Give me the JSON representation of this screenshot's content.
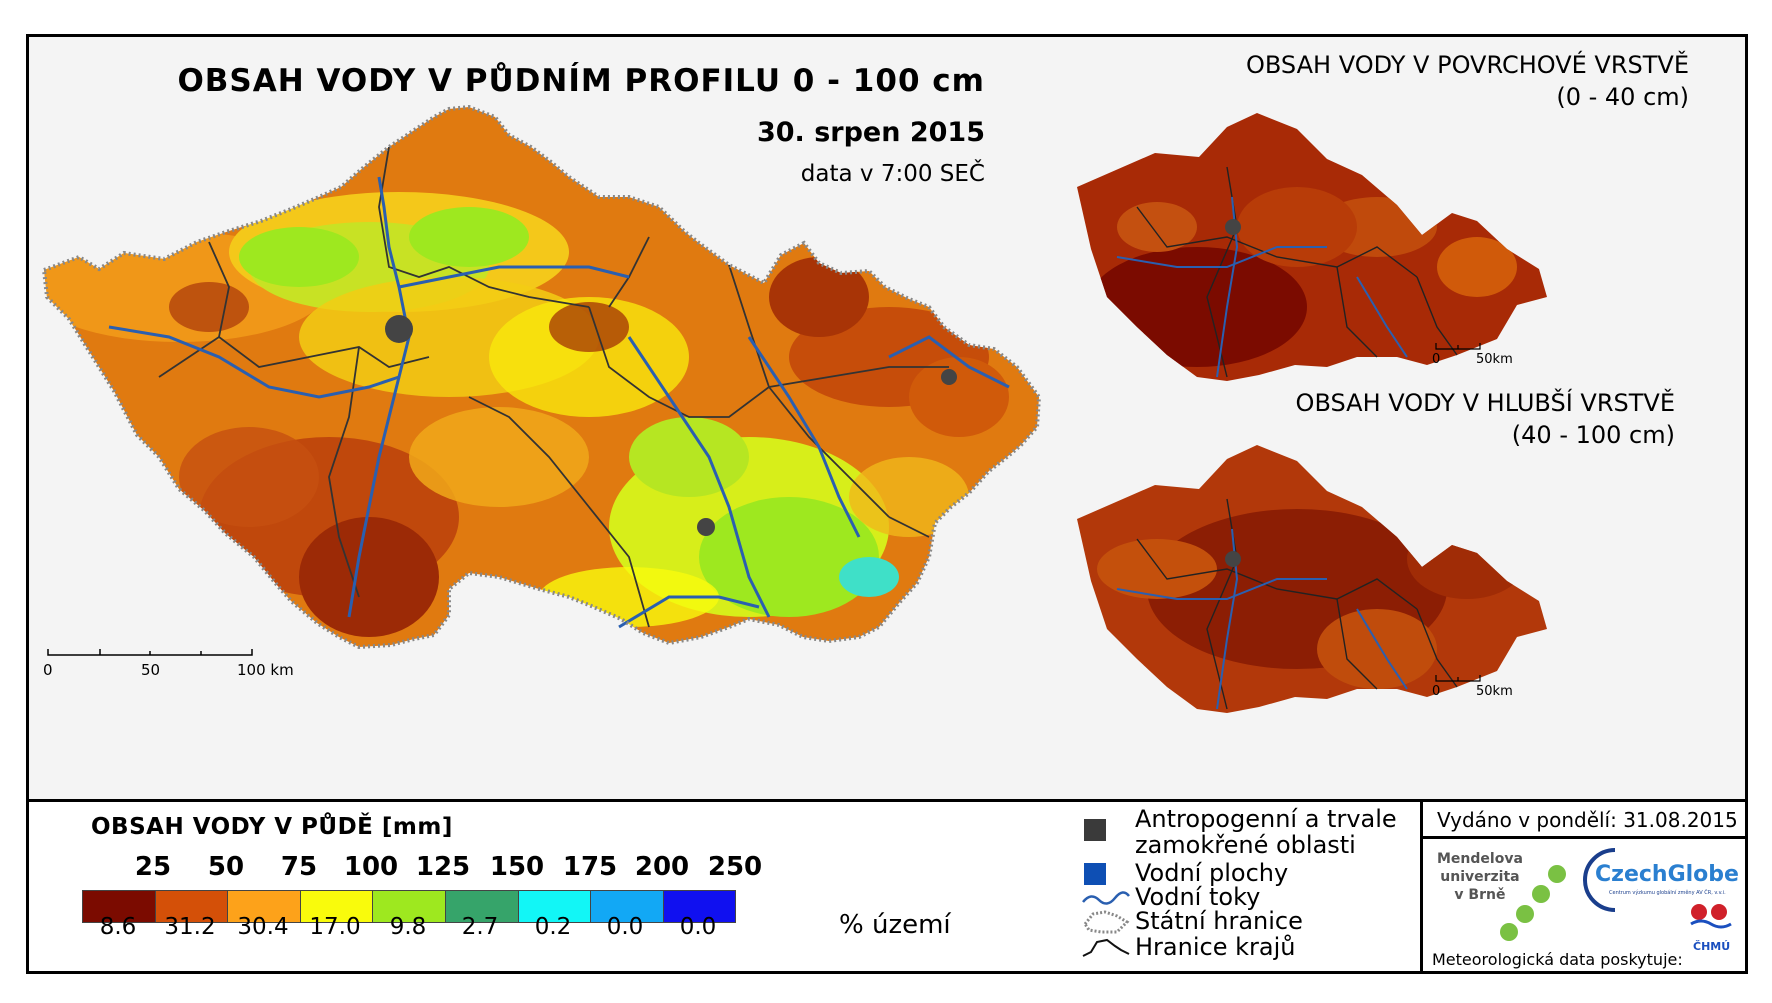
{
  "main_title": "OBSAH VODY V PŮDNÍM PROFILU 0 - 100 cm",
  "date": "30. srpen 2015",
  "data_time": "data v 7:00 SEČ",
  "main_scale": {
    "ticks": [
      "0",
      "50",
      "100 km"
    ]
  },
  "inset_top": {
    "title_line1": "OBSAH VODY V POVRCHOVÉ VRSTVĚ",
    "title_line2": "(0 - 40 cm)",
    "scale": [
      "0",
      "50km"
    ]
  },
  "inset_bottom": {
    "title_line1": "OBSAH VODY V HLUBŠÍ VRSTVĚ",
    "title_line2": "(40 - 100 cm)",
    "scale": [
      "0",
      "50km"
    ]
  },
  "legend": {
    "title": "OBSAH VODY V PŮDĚ [mm]",
    "thresholds": [
      "25",
      "50",
      "75",
      "100",
      "125",
      "150",
      "175",
      "200",
      "250"
    ],
    "classes": [
      {
        "color": "#7b0b00",
        "percent": "8.6"
      },
      {
        "color": "#d45008",
        "percent": "31.2"
      },
      {
        "color": "#fda21a",
        "percent": "30.4"
      },
      {
        "color": "#f9fb0c",
        "percent": "17.0"
      },
      {
        "color": "#9ee81f",
        "percent": "9.8"
      },
      {
        "color": "#36a46a",
        "percent": "2.7"
      },
      {
        "color": "#12f6f6",
        "percent": "0.2"
      },
      {
        "color": "#12a8f5",
        "percent": "0.0"
      },
      {
        "color": "#1010f0",
        "percent": "0.0"
      }
    ],
    "percent_unit": "% území"
  },
  "symbols": [
    {
      "icon": "dark-square-icon",
      "label_line1": "Antropogenní a trvale",
      "label_line2": "zamokřené oblasti"
    },
    {
      "icon": "blue-square-icon",
      "label_line1": "Vodní plochy"
    },
    {
      "icon": "river-line-icon",
      "label_line1": "Vodní toky"
    },
    {
      "icon": "state-border-icon",
      "label_line1": "Státní hranice"
    },
    {
      "icon": "region-border-icon",
      "label_line1": "Hranice krajů"
    }
  ],
  "issued": "Vydáno v pondělí: 31.08.2015",
  "logos": {
    "mendel_line1": "Mendelova",
    "mendel_line2": "univerzita",
    "mendel_line3": "v Brně",
    "czechglobe": "CzechGlobe",
    "czechglobe_sub": "Centrum výzkumu globální změny AV ČR, v.v.i.",
    "chmu": "ČHMÚ"
  },
  "provider": "Meteorologická data poskytuje:",
  "colors": {
    "dark_red": "#7b0b00",
    "orange_red": "#d45008",
    "orange": "#fda21a",
    "yellow": "#f9fb0c",
    "green": "#9ee81f",
    "river": "#2a5fb0",
    "border": "#222222"
  }
}
